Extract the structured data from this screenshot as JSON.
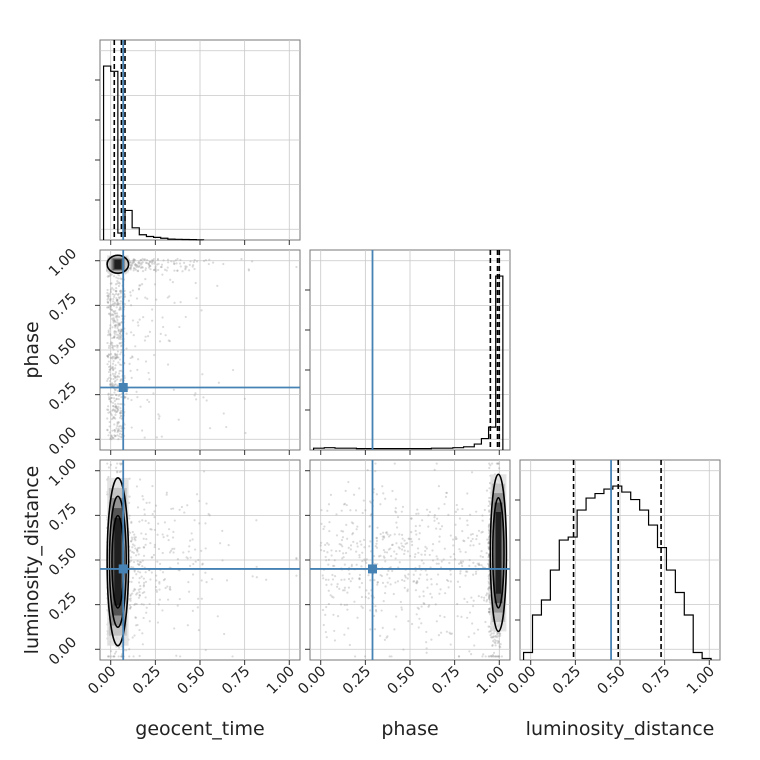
{
  "chart_data": {
    "type": "corner",
    "parameters": [
      "geocent_time",
      "phase",
      "luminosity_distance"
    ],
    "truth": {
      "geocent_time": 0.07,
      "phase": 0.29,
      "luminosity_distance": 0.45
    },
    "quantiles": {
      "geocent_time": [
        0.02,
        0.06,
        0.08
      ],
      "phase": [
        0.95,
        0.99,
        1.0
      ],
      "luminosity_distance": [
        0.24,
        0.49,
        0.73
      ]
    },
    "axis_range": [
      -0.06,
      1.06
    ],
    "tick_values": [
      0.0,
      0.25,
      0.5,
      0.75,
      1.0
    ],
    "tick_labels": [
      "0.00",
      "0.25",
      "0.50",
      "0.75",
      "1.00"
    ],
    "grid": true,
    "histograms": {
      "geocent_time": {
        "bin_edges": [
          -0.04,
          0.0,
          0.04,
          0.08,
          0.12,
          0.16,
          0.2,
          0.24,
          0.28,
          0.32,
          0.36,
          0.4,
          0.44,
          0.48,
          0.52
        ],
        "counts": [
          100,
          97,
          4,
          17,
          7,
          3,
          2,
          1.5,
          1,
          0.5,
          0.4,
          0.3,
          0.2,
          0.1
        ]
      },
      "phase": {
        "bin_edges": [
          -0.04,
          0.02,
          0.08,
          0.14,
          0.2,
          0.26,
          0.32,
          0.38,
          0.44,
          0.5,
          0.56,
          0.62,
          0.68,
          0.74,
          0.8,
          0.86,
          0.9,
          0.94,
          0.98,
          1.02
        ],
        "counts": [
          0.4,
          0.5,
          0.4,
          0.4,
          0.3,
          0.3,
          0.3,
          0.3,
          0.3,
          0.3,
          0.3,
          0.4,
          0.4,
          0.5,
          0.7,
          1.3,
          2.5,
          5.0,
          38.0
        ]
      },
      "luminosity_distance": {
        "bin_edges": [
          -0.04,
          0.01,
          0.06,
          0.11,
          0.16,
          0.21,
          0.26,
          0.31,
          0.36,
          0.41,
          0.46,
          0.51,
          0.56,
          0.61,
          0.66,
          0.71,
          0.76,
          0.81,
          0.86,
          0.91,
          0.96,
          1.01
        ],
        "counts": [
          5,
          30,
          40,
          60,
          80,
          82,
          100,
          108,
          111,
          114,
          116,
          112,
          107,
          100,
          90,
          75,
          60,
          45,
          30,
          5,
          1
        ]
      }
    },
    "density": {
      "phase_vs_geocent_time": {
        "x_mode": [
          -0.02,
          0.1
        ],
        "y_mode": [
          0.93,
          1.03
        ]
      },
      "luminosity_distance_vs_geocent_time": {
        "x_mode": [
          -0.02,
          0.1
        ],
        "y_mode": [
          0.02,
          0.96
        ]
      },
      "luminosity_distance_vs_phase": {
        "x_mode": [
          0.95,
          1.04
        ],
        "y_mode": [
          0.1,
          0.98
        ]
      }
    }
  }
}
